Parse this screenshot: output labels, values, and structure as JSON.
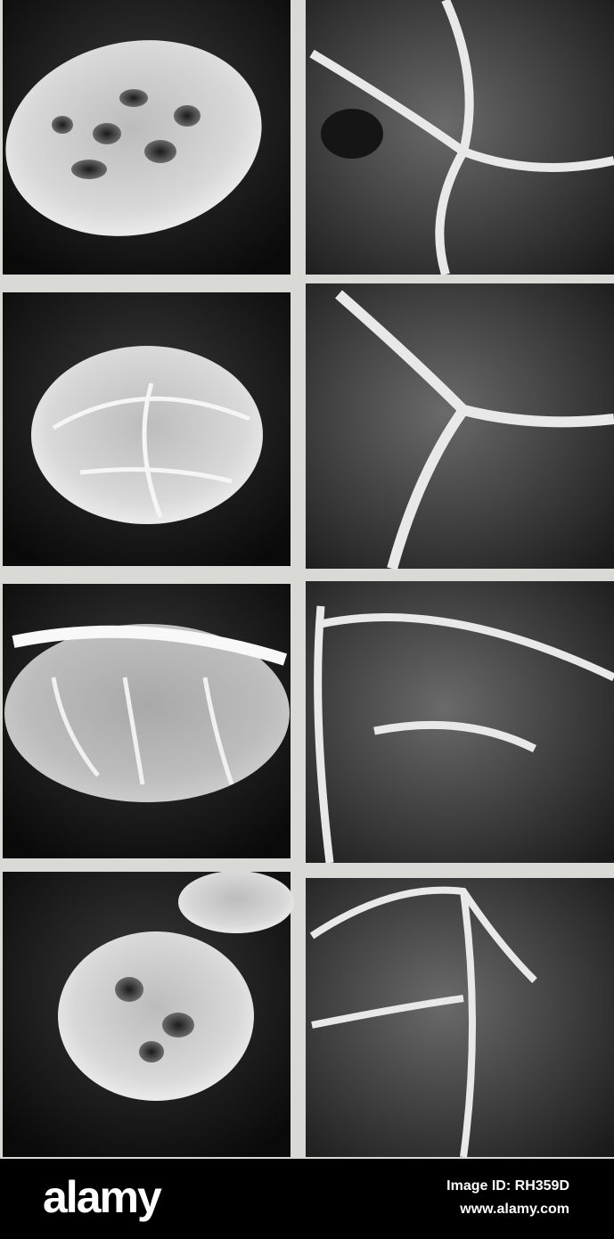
{
  "footer": {
    "logo": "alamy",
    "image_id": "Image ID: RH359D",
    "url": "www.alamy.com"
  }
}
